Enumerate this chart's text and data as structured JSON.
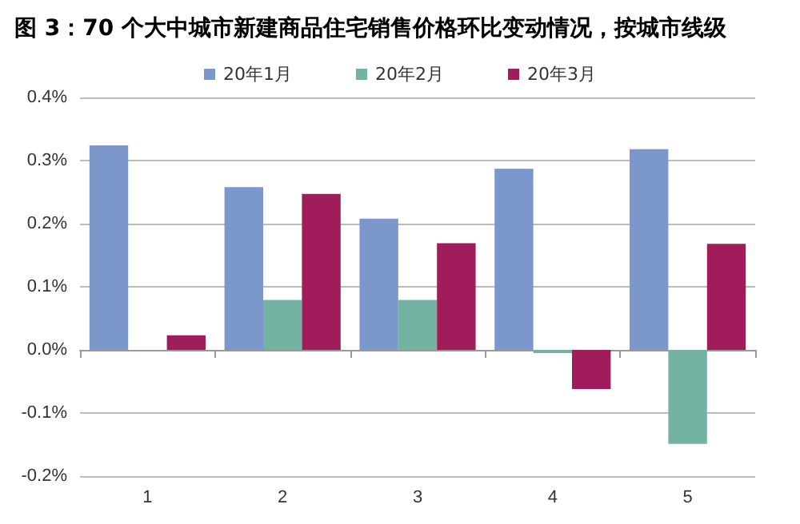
{
  "chart_data": {
    "type": "bar",
    "title": "图 3：70 个大中城市新建商品住宅销售价格环比变动情况，按城市线级",
    "categories": [
      "1",
      "2",
      "3",
      "4",
      "5"
    ],
    "series": [
      {
        "name": "20年1月",
        "color": "#7b97cc",
        "values": [
          0.324,
          0.258,
          0.208,
          0.287,
          0.318
        ]
      },
      {
        "name": "20年2月",
        "color": "#74b3a4",
        "values": [
          0,
          0.079,
          0.079,
          -0.005,
          -0.149
        ]
      },
      {
        "name": "20年3月",
        "color": "#a01c5a",
        "values": [
          0.023,
          0.247,
          0.169,
          -0.062,
          0.168
        ]
      }
    ],
    "ylim": [
      -0.2,
      0.4
    ],
    "yticks": [
      {
        "value": -0.2,
        "label": "-0.2%"
      },
      {
        "value": -0.1,
        "label": "-0.1%"
      },
      {
        "value": 0,
        "label": "0.0%"
      },
      {
        "value": 0.1,
        "label": "0.1%"
      },
      {
        "value": 0.2,
        "label": "0.2%"
      },
      {
        "value": 0.3,
        "label": "0.3%"
      },
      {
        "value": 0.4,
        "label": "0.4%"
      }
    ],
    "grid": "y",
    "legend": "top"
  }
}
